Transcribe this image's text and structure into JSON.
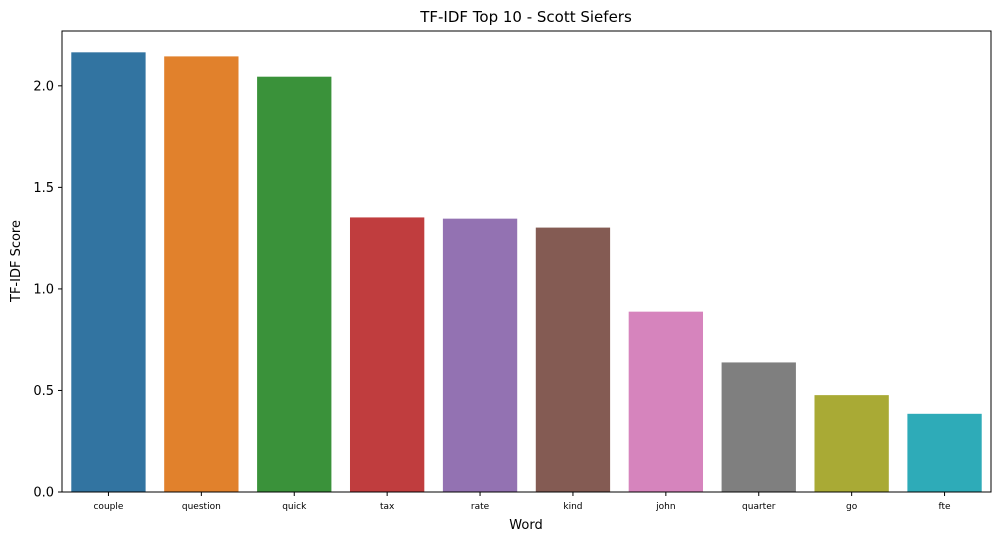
{
  "chart_data": {
    "type": "bar",
    "title": "TF-IDF Top 10 - Scott Siefers",
    "xlabel": "Word",
    "ylabel": "TF-IDF Score",
    "categories": [
      "couple",
      "question",
      "quick",
      "tax",
      "rate",
      "kind",
      "john",
      "quarter",
      "go",
      "fte"
    ],
    "values": [
      2.165,
      2.145,
      2.045,
      1.352,
      1.346,
      1.302,
      0.888,
      0.638,
      0.477,
      0.385
    ],
    "colors": [
      "#3274a1",
      "#e1812c",
      "#3a923a",
      "#c03d3e",
      "#9372b2",
      "#845b53",
      "#d684bd",
      "#7f7f7f",
      "#a9aa35",
      "#2eabb8"
    ],
    "ylim": [
      0,
      2.27
    ],
    "yticks": [
      0.0,
      0.5,
      1.0,
      1.5,
      2.0
    ],
    "ytick_labels": [
      "0.0",
      "0.5",
      "1.0",
      "1.5",
      "2.0"
    ],
    "grid": false,
    "legend": false
  }
}
